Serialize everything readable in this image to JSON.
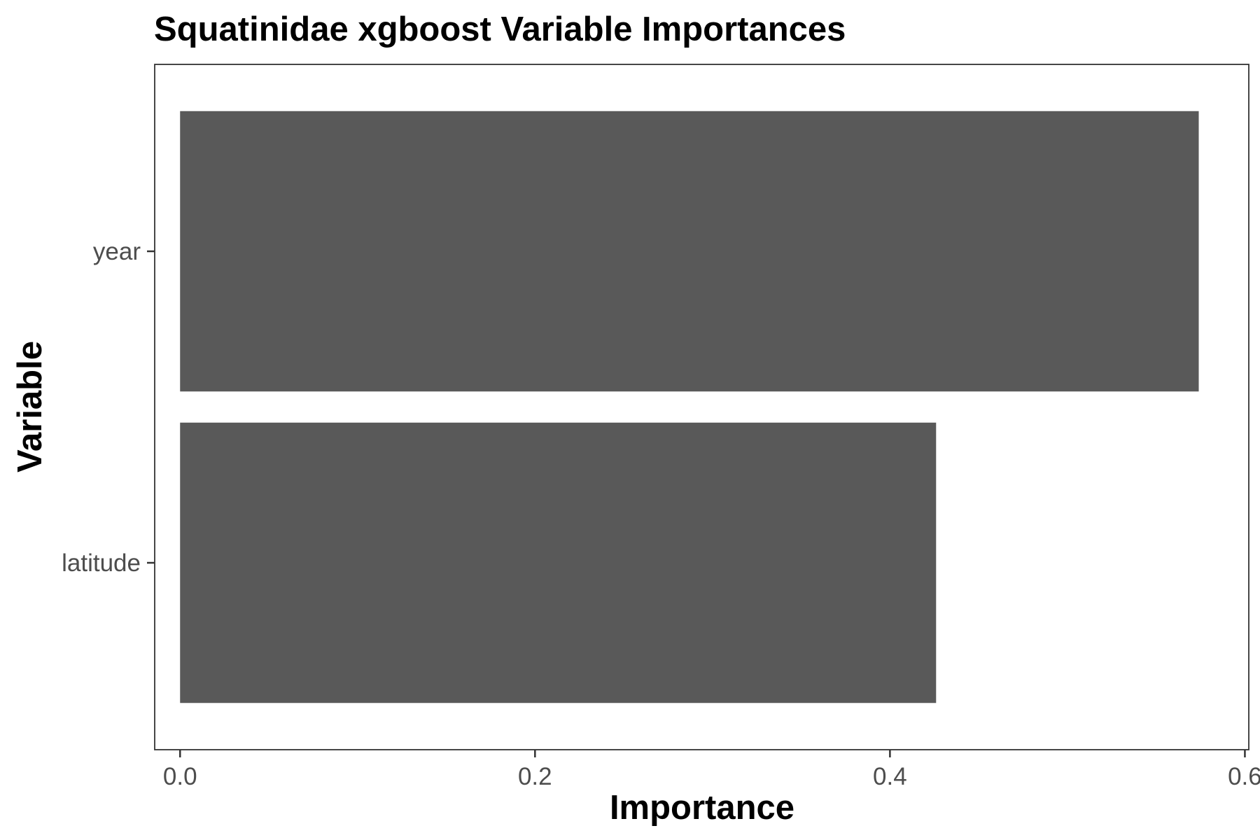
{
  "chart_data": {
    "type": "bar",
    "orientation": "horizontal",
    "title": "Squatinidae xgboost Variable Importances",
    "xlabel": "Importance",
    "ylabel": "Variable",
    "categories": [
      "year",
      "latitude"
    ],
    "values": [
      0.574,
      0.426
    ],
    "xlim": [
      -0.0143,
      0.6022
    ],
    "xticks": [
      0.0,
      0.2,
      0.4,
      0.6
    ],
    "xtick_labels": [
      "0.0",
      "0.2",
      "0.4",
      "0.6"
    ],
    "grid": false,
    "legend": "none",
    "bar_color": "#595959",
    "panel_border_color": "#333333"
  }
}
